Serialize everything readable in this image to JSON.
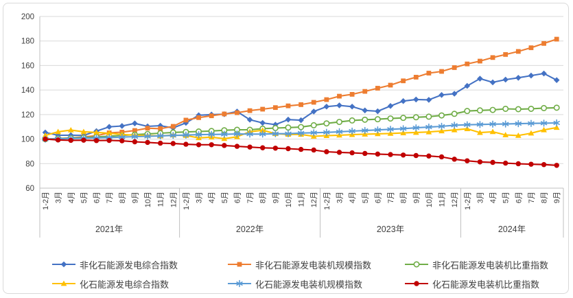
{
  "chart_data": {
    "type": "line",
    "title": "",
    "xlabel": "",
    "ylabel": "",
    "ylim": [
      60,
      200
    ],
    "yticks": [
      60,
      80,
      100,
      120,
      140,
      160,
      180,
      200
    ],
    "grid": "horizontal",
    "legend_position": "bottom",
    "grid_color": "#d9d9d9",
    "axis_color": "#bfbfbf",
    "label_color": "#404040",
    "x_labels": [
      "1-2月",
      "3月",
      "4月",
      "5月",
      "6月",
      "7月",
      "8月",
      "9月",
      "10月",
      "11月",
      "12月",
      "1-2月",
      "3月",
      "4月",
      "5月",
      "6月",
      "7月",
      "8月",
      "9月",
      "10月",
      "11月",
      "12月",
      "1-2月",
      "3月",
      "4月",
      "5月",
      "6月",
      "7月",
      "8月",
      "9月",
      "10月",
      "11月",
      "12月",
      "1-2月",
      "3月",
      "4月",
      "5月",
      "6月",
      "7月",
      "8月",
      "9月"
    ],
    "year_groups": [
      {
        "label": "2021年",
        "months": 11
      },
      {
        "label": "2022年",
        "months": 11
      },
      {
        "label": "2023年",
        "months": 11
      },
      {
        "label": "2024年",
        "months": 8
      }
    ],
    "series": [
      {
        "name": "非化石能源发电综合指数",
        "color": "#4472C4",
        "marker": "diamond",
        "values": [
          105.4,
          103.1,
          103.2,
          103.0,
          106.5,
          110.0,
          110.7,
          112.8,
          110.4,
          110.9,
          109.1,
          113.2,
          119.5,
          120.0,
          120.3,
          122.5,
          115.8,
          113.2,
          111.8,
          115.9,
          115.4,
          122.5,
          126.5,
          127.5,
          126.5,
          123.4,
          122.7,
          127.0,
          131.0,
          132.3,
          132.0,
          136.0,
          137.0,
          143.4,
          149.3,
          146.3,
          148.5,
          150.0,
          151.8,
          153.5,
          148.1
        ]
      },
      {
        "name": "非化石能源发电装机规模指数",
        "color": "#ED7D31",
        "marker": "square",
        "values": [
          100.0,
          100.5,
          101.0,
          101.8,
          102.8,
          105.1,
          105.7,
          107.0,
          108.9,
          108.5,
          110.4,
          115.5,
          117.5,
          119.0,
          120.5,
          121.5,
          123.2,
          124.4,
          125.7,
          127.1,
          128.1,
          130.0,
          132.2,
          135.0,
          136.5,
          138.9,
          141.5,
          144.0,
          147.5,
          150.5,
          153.8,
          155.2,
          158.3,
          161.3,
          163.6,
          166.5,
          169.0,
          171.5,
          174.5,
          178.0,
          181.5
        ]
      },
      {
        "name": "非化石能源发电装机比重指数",
        "color": "#70AD47",
        "marker": "circle-open",
        "values": [
          100.0,
          100.4,
          100.8,
          101.2,
          101.8,
          102.4,
          103.0,
          103.6,
          104.2,
          104.8,
          105.4,
          105.8,
          106.2,
          106.6,
          107.2,
          107.6,
          107.6,
          108.5,
          109.0,
          109.4,
          109.8,
          111.3,
          112.8,
          114.0,
          115.2,
          115.8,
          116.2,
          116.8,
          117.3,
          117.8,
          118.3,
          119.3,
          120.6,
          122.9,
          123.4,
          123.8,
          124.7,
          124.4,
          124.7,
          125.3,
          125.6
        ]
      },
      {
        "name": "化石能源发电综合指数",
        "color": "#FFC000",
        "marker": "triangle",
        "values": [
          103.0,
          106.0,
          107.4,
          106.0,
          105.5,
          104.8,
          103.8,
          103.2,
          102.9,
          102.5,
          103.3,
          102.9,
          101.0,
          101.6,
          100.4,
          101.9,
          106.0,
          107.2,
          104.4,
          103.8,
          103.8,
          102.3,
          102.8,
          103.2,
          103.6,
          104.0,
          104.3,
          104.6,
          105.0,
          105.4,
          105.8,
          106.6,
          107.5,
          108.4,
          105.3,
          106.0,
          103.4,
          102.9,
          104.8,
          107.5,
          109.4
        ]
      },
      {
        "name": "化石能源发电装机规模指数",
        "color": "#5B9BD5",
        "marker": "asterisk",
        "values": [
          100.0,
          100.2,
          100.5,
          100.8,
          101.0,
          101.3,
          101.6,
          102.0,
          102.3,
          102.6,
          103.0,
          103.3,
          103.6,
          103.8,
          103.9,
          104.2,
          104.1,
          104.1,
          104.4,
          104.4,
          104.9,
          105.2,
          105.5,
          106.0,
          106.5,
          107.0,
          107.5,
          108.0,
          108.5,
          109.2,
          109.8,
          110.4,
          111.3,
          111.7,
          111.9,
          112.2,
          112.3,
          112.6,
          112.8,
          113.0,
          113.2
        ]
      },
      {
        "name": "化石能源发电装机比重指数",
        "color": "#C00000",
        "marker": "circle",
        "values": [
          100.0,
          99.3,
          99.0,
          99.1,
          98.8,
          98.9,
          98.6,
          97.8,
          97.3,
          96.7,
          96.4,
          95.8,
          95.4,
          95.4,
          94.8,
          94.1,
          93.5,
          92.9,
          92.6,
          92.2,
          91.6,
          91.1,
          89.7,
          89.2,
          88.8,
          88.3,
          87.8,
          87.4,
          87.0,
          86.6,
          86.2,
          85.5,
          83.6,
          82.3,
          81.4,
          81.0,
          80.4,
          79.9,
          79.5,
          79.2,
          78.6
        ]
      }
    ]
  }
}
